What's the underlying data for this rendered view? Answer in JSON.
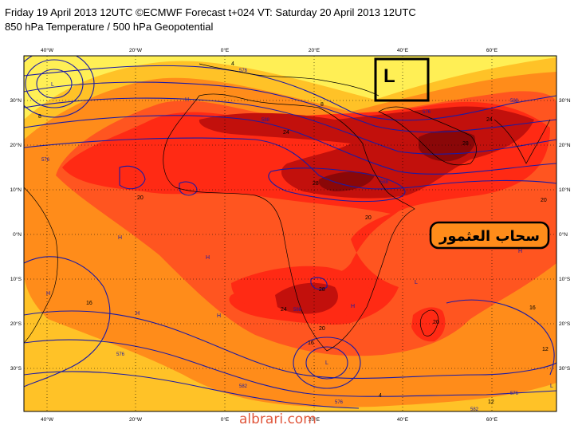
{
  "header": {
    "line1": "Friday 19 April 2013 12UTC ©ECMWF Forecast t+024 VT: Saturday 20 April 2013 12UTC",
    "line2": "850 hPa Temperature / 500 hPa Geopotential"
  },
  "axes": {
    "lon_labels": [
      "40°W",
      "20°W",
      "0°E",
      "20°E",
      "40°E",
      "60°E"
    ],
    "lat_labels": [
      "30°N",
      "20°N",
      "10°N",
      "0°N",
      "10°S",
      "20°S",
      "30°S"
    ]
  },
  "annotations": {
    "low_box_letter": "L",
    "arabic_label": "سحاب العثمور"
  },
  "isotherm_labels": [
    "24",
    "28",
    "24",
    "28",
    "20",
    "20",
    "20",
    "28",
    "24",
    "20",
    "20",
    "16",
    "16",
    "16",
    "12",
    "12",
    "8",
    "8",
    "4",
    "4"
  ],
  "geopotential_labels": [
    "588",
    "588",
    "576",
    "576",
    "588",
    "576",
    "576",
    "576",
    "582",
    "588",
    "576",
    "582"
  ],
  "pressure_marks": [
    "H",
    "H",
    "H",
    "H",
    "H",
    "H",
    "H",
    "H",
    "L",
    "L",
    "L",
    "L"
  ],
  "watermark": "albrari.com",
  "colors": {
    "yellow": "#ffef55",
    "light_orange": "#ffc227",
    "orange": "#ff8c1a",
    "red_orange": "#ff5520",
    "red": "#ff2a14",
    "dark_red": "#c2100c",
    "deepest_red": "#8a0708",
    "contour_blue": "#1a1aa6"
  }
}
